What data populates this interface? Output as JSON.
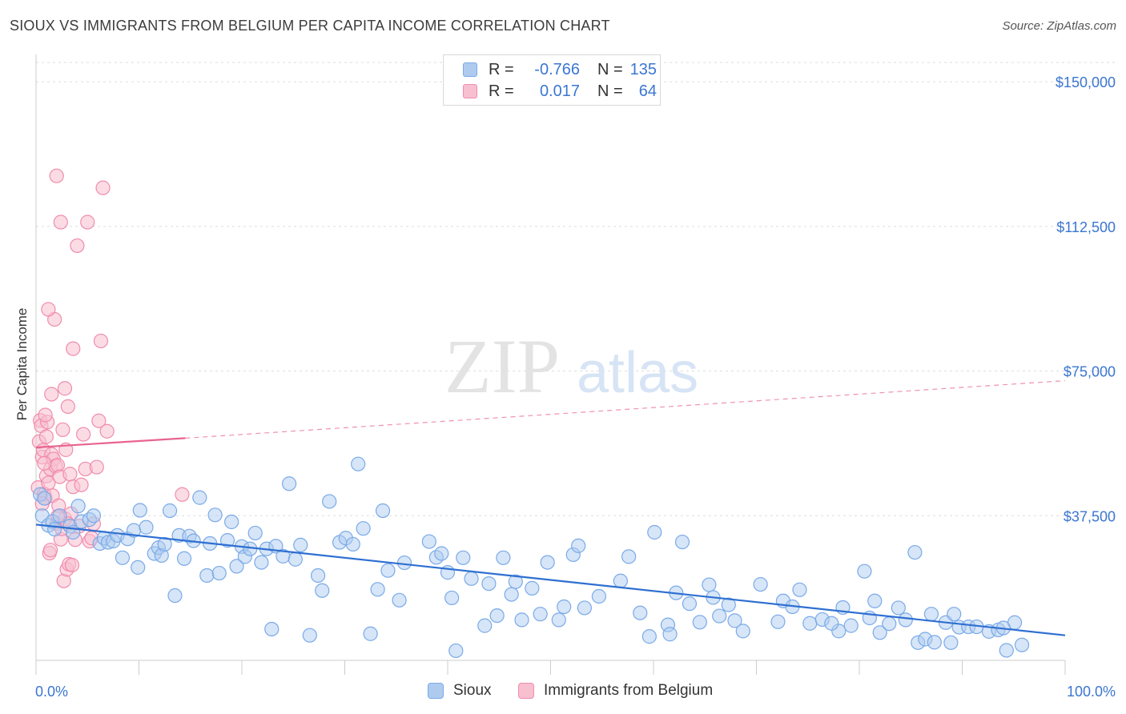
{
  "header": {
    "title": "SIOUX VS IMMIGRANTS FROM BELGIUM PER CAPITA INCOME CORRELATION CHART",
    "source": "Source: ZipAtlas.com"
  },
  "legend": {
    "r_label": "R =",
    "n_label": "N =",
    "rows": [
      {
        "name": "Sioux",
        "r": "-0.766",
        "n": "135",
        "color": "#7aaae8"
      },
      {
        "name": "Immigrants from Belgium",
        "r": "0.017",
        "n": "64",
        "color": "#f08cad"
      }
    ]
  },
  "watermark": {
    "zip": "ZIP",
    "atlas": "atlas"
  },
  "chart_data": {
    "type": "scatter",
    "title": "SIOUX VS IMMIGRANTS FROM BELGIUM PER CAPITA INCOME CORRELATION CHART",
    "xlabel": "",
    "ylabel": "Per Capita Income",
    "xlim": [
      0,
      100
    ],
    "ylim": [
      0,
      155000
    ],
    "x_tick_labels": [
      "0.0%",
      "100.0%"
    ],
    "y_ticks": [
      37500,
      75000,
      112500,
      150000
    ],
    "y_tick_labels": [
      "$37,500",
      "$75,000",
      "$112,500",
      "$150,000"
    ],
    "grid": true,
    "colors": {
      "sioux_fill": "#aecbef",
      "sioux_stroke": "#7aaae8",
      "sioux_line": "#2e6fd1",
      "belgium_fill": "#f7bfd0",
      "belgium_stroke": "#f08cad",
      "belgium_line": "#e8648f",
      "axis_label": "#3b76d1"
    },
    "series": [
      {
        "name": "Sioux",
        "trend": {
          "x0": 0,
          "y0": 35200,
          "x1": 100,
          "y1": 6500,
          "style": "solid"
        },
        "points": [
          [
            0.4,
            43000
          ],
          [
            0.6,
            37500
          ],
          [
            0.8,
            42000
          ],
          [
            1.2,
            35000
          ],
          [
            1.6,
            36000
          ],
          [
            1.8,
            34000
          ],
          [
            2.3,
            37500
          ],
          [
            3.3,
            34800
          ],
          [
            3.6,
            33200
          ],
          [
            4.1,
            40000
          ],
          [
            4.4,
            36000
          ],
          [
            5.2,
            36500
          ],
          [
            5.6,
            37500
          ],
          [
            6.2,
            30300
          ],
          [
            6.6,
            31700
          ],
          [
            7.0,
            30600
          ],
          [
            7.5,
            30900
          ],
          [
            7.9,
            32400
          ],
          [
            8.4,
            26600
          ],
          [
            8.9,
            31500
          ],
          [
            9.5,
            33700
          ],
          [
            9.9,
            24100
          ],
          [
            10.1,
            38900
          ],
          [
            10.7,
            34500
          ],
          [
            11.5,
            27700
          ],
          [
            11.9,
            29200
          ],
          [
            12.2,
            27200
          ],
          [
            12.5,
            30100
          ],
          [
            13.0,
            38800
          ],
          [
            13.5,
            16800
          ],
          [
            13.9,
            32400
          ],
          [
            14.4,
            26400
          ],
          [
            14.9,
            32200
          ],
          [
            15.3,
            31000
          ],
          [
            15.9,
            42200
          ],
          [
            16.6,
            22000
          ],
          [
            16.9,
            30300
          ],
          [
            17.4,
            37700
          ],
          [
            17.8,
            22600
          ],
          [
            18.6,
            31100
          ],
          [
            19.0,
            35900
          ],
          [
            19.5,
            24400
          ],
          [
            20.0,
            29500
          ],
          [
            20.3,
            26900
          ],
          [
            20.8,
            28900
          ],
          [
            21.3,
            33000
          ],
          [
            21.9,
            25400
          ],
          [
            22.4,
            28900
          ],
          [
            22.9,
            8100
          ],
          [
            23.3,
            29600
          ],
          [
            24.0,
            27000
          ],
          [
            24.6,
            45800
          ],
          [
            25.2,
            26200
          ],
          [
            25.7,
            29900
          ],
          [
            26.6,
            6500
          ],
          [
            27.4,
            22000
          ],
          [
            27.8,
            18100
          ],
          [
            28.5,
            41200
          ],
          [
            29.5,
            30600
          ],
          [
            30.1,
            31700
          ],
          [
            30.8,
            30100
          ],
          [
            31.3,
            50900
          ],
          [
            31.8,
            34200
          ],
          [
            32.5,
            6900
          ],
          [
            33.2,
            18400
          ],
          [
            33.7,
            38800
          ],
          [
            34.2,
            23300
          ],
          [
            35.3,
            15600
          ],
          [
            35.8,
            25300
          ],
          [
            38.2,
            30800
          ],
          [
            38.9,
            26700
          ],
          [
            39.4,
            27700
          ],
          [
            40.0,
            22800
          ],
          [
            40.4,
            16200
          ],
          [
            40.8,
            2500
          ],
          [
            41.5,
            26600
          ],
          [
            42.3,
            21200
          ],
          [
            43.6,
            9000
          ],
          [
            44.0,
            19900
          ],
          [
            44.8,
            11600
          ],
          [
            45.4,
            26600
          ],
          [
            46.2,
            17100
          ],
          [
            46.6,
            20400
          ],
          [
            47.2,
            10500
          ],
          [
            48.2,
            18700
          ],
          [
            49.7,
            25400
          ],
          [
            50.8,
            10500
          ],
          [
            51.3,
            13900
          ],
          [
            52.2,
            27400
          ],
          [
            52.7,
            29700
          ],
          [
            53.3,
            13600
          ],
          [
            54.7,
            16600
          ],
          [
            56.8,
            20600
          ],
          [
            57.6,
            26900
          ],
          [
            58.7,
            12300
          ],
          [
            59.6,
            6200
          ],
          [
            60.1,
            33200
          ],
          [
            61.4,
            9200
          ],
          [
            61.6,
            6800
          ],
          [
            62.8,
            30700
          ],
          [
            63.5,
            14700
          ],
          [
            64.5,
            9900
          ],
          [
            65.4,
            19600
          ],
          [
            65.8,
            16300
          ],
          [
            66.4,
            11500
          ],
          [
            67.3,
            14400
          ],
          [
            67.9,
            10300
          ],
          [
            68.7,
            7600
          ],
          [
            70.4,
            19700
          ],
          [
            72.1,
            10000
          ],
          [
            72.6,
            15400
          ],
          [
            73.5,
            13900
          ],
          [
            74.2,
            18300
          ],
          [
            75.2,
            9600
          ],
          [
            76.4,
            10600
          ],
          [
            78.0,
            7600
          ],
          [
            78.4,
            13700
          ],
          [
            79.2,
            9000
          ],
          [
            80.5,
            23100
          ],
          [
            81.0,
            11000
          ],
          [
            81.5,
            15400
          ],
          [
            82.0,
            7200
          ],
          [
            82.9,
            9500
          ],
          [
            83.8,
            13600
          ],
          [
            84.5,
            10500
          ],
          [
            85.4,
            28000
          ],
          [
            85.7,
            4600
          ],
          [
            86.4,
            5500
          ],
          [
            87.0,
            12000
          ],
          [
            87.3,
            4700
          ],
          [
            88.4,
            9800
          ],
          [
            89.2,
            12000
          ],
          [
            89.7,
            8600
          ],
          [
            90.6,
            8700
          ],
          [
            91.4,
            8700
          ],
          [
            92.6,
            7500
          ],
          [
            93.5,
            7900
          ],
          [
            94.3,
            2600
          ],
          [
            95.1,
            9800
          ],
          [
            95.8,
            4000
          ],
          [
            94.0,
            8400
          ],
          [
            88.9,
            4600
          ],
          [
            77.3,
            9600
          ],
          [
            62.2,
            17500
          ],
          [
            49.0,
            12000
          ]
        ]
      },
      {
        "name": "Immigrants from Belgium",
        "trend": {
          "x0": 0,
          "y0": 55200,
          "x1": 14.5,
          "y1": 57600,
          "x_dash_end": 100,
          "y_dash_end": 72500,
          "style": "solid-then-dashed"
        },
        "points": [
          [
            0.2,
            44800
          ],
          [
            0.3,
            56700
          ],
          [
            0.4,
            62200
          ],
          [
            0.5,
            60800
          ],
          [
            0.6,
            52700
          ],
          [
            0.7,
            54500
          ],
          [
            0.8,
            43100
          ],
          [
            0.9,
            42000
          ],
          [
            1.0,
            47800
          ],
          [
            1.1,
            61800
          ],
          [
            1.2,
            46000
          ],
          [
            1.3,
            27800
          ],
          [
            1.4,
            49600
          ],
          [
            1.5,
            53400
          ],
          [
            1.6,
            42700
          ],
          [
            1.7,
            52200
          ],
          [
            1.8,
            88400
          ],
          [
            1.9,
            50400
          ],
          [
            2.0,
            35500
          ],
          [
            2.1,
            50600
          ],
          [
            2.2,
            40100
          ],
          [
            2.3,
            47600
          ],
          [
            2.4,
            31400
          ],
          [
            2.5,
            34100
          ],
          [
            2.6,
            59800
          ],
          [
            2.7,
            20600
          ],
          [
            2.8,
            36700
          ],
          [
            2.9,
            54600
          ],
          [
            3.0,
            23600
          ],
          [
            3.1,
            65800
          ],
          [
            3.2,
            24900
          ],
          [
            3.3,
            48300
          ],
          [
            3.4,
            38000
          ],
          [
            3.5,
            24700
          ],
          [
            3.6,
            45000
          ],
          [
            3.8,
            31300
          ],
          [
            4.0,
            107500
          ],
          [
            4.2,
            34800
          ],
          [
            4.4,
            45500
          ],
          [
            4.6,
            58600
          ],
          [
            4.8,
            49600
          ],
          [
            5.0,
            113600
          ],
          [
            5.2,
            30900
          ],
          [
            5.4,
            31700
          ],
          [
            5.6,
            35400
          ],
          [
            5.9,
            50100
          ],
          [
            6.1,
            62100
          ],
          [
            6.3,
            82800
          ],
          [
            6.5,
            122500
          ],
          [
            6.9,
            59400
          ],
          [
            1.2,
            91000
          ],
          [
            1.5,
            69000
          ],
          [
            2.0,
            125600
          ],
          [
            2.4,
            113600
          ],
          [
            2.8,
            70500
          ],
          [
            3.6,
            80800
          ],
          [
            0.9,
            63600
          ],
          [
            0.6,
            40600
          ],
          [
            1.0,
            58000
          ],
          [
            1.4,
            28600
          ],
          [
            14.2,
            43000
          ],
          [
            3.1,
            35400
          ],
          [
            2.1,
            37300
          ],
          [
            0.8,
            51100
          ]
        ]
      }
    ]
  }
}
